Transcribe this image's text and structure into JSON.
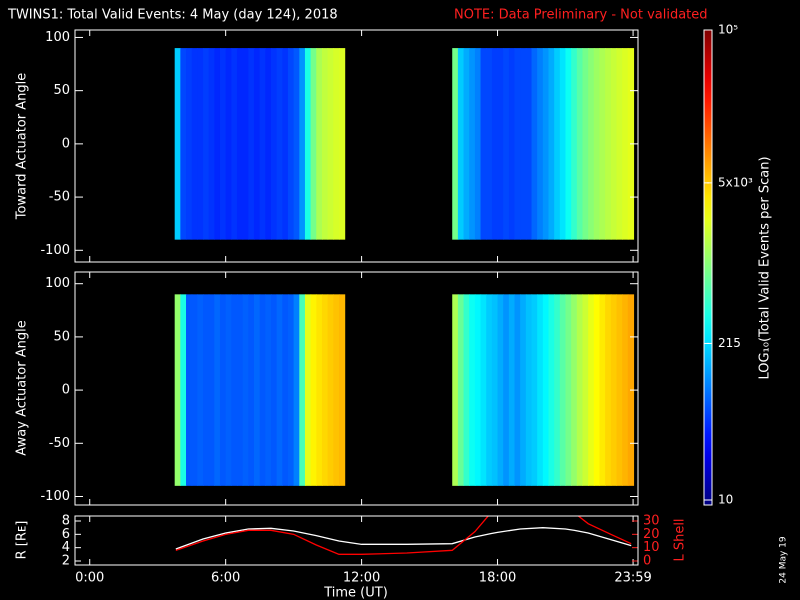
{
  "chart_data": [
    {
      "type": "heatmap",
      "title": "TWINS1: Total Valid Events:  4 May (day 124), 2018",
      "note": "NOTE: Data Preliminary - Not validated",
      "ylabel": "Toward Actuator Angle",
      "x": [
        3.875,
        4.125,
        4.375,
        4.625,
        4.875,
        5.125,
        5.375,
        5.625,
        5.875,
        6.125,
        6.375,
        6.625,
        6.875,
        7.125,
        7.375,
        7.625,
        7.875,
        8.125,
        8.375,
        8.625,
        8.875,
        9.125,
        9.375,
        9.625,
        9.875,
        10.125,
        10.375,
        10.625,
        10.875,
        11.125,
        16.125,
        16.375,
        16.625,
        16.875,
        17.125,
        17.375,
        17.625,
        17.875,
        18.125,
        18.375,
        18.625,
        18.875,
        19.125,
        19.375,
        19.625,
        19.875,
        20.125,
        20.375,
        20.625,
        20.875,
        21.125,
        21.375,
        21.625,
        21.875,
        22.125,
        22.375,
        22.625,
        22.875,
        23.125,
        23.375,
        23.625,
        23.875
      ],
      "angle_range": [
        -90,
        90
      ],
      "values": [
        200,
        60,
        55,
        50,
        50,
        55,
        50,
        45,
        50,
        45,
        50,
        45,
        45,
        50,
        45,
        50,
        45,
        50,
        55,
        50,
        60,
        70,
        120,
        400,
        900,
        1500,
        1800,
        2000,
        2200,
        2300,
        900,
        200,
        150,
        120,
        100,
        60,
        60,
        55,
        55,
        60,
        55,
        60,
        60,
        60,
        80,
        100,
        120,
        150,
        200,
        250,
        350,
        500,
        700,
        900,
        1100,
        1300,
        1500,
        1700,
        1900,
        2100,
        2300,
        2500
      ],
      "ylim": [
        -111,
        107
      ],
      "yticks": [
        -100,
        -50,
        0,
        50,
        100
      ],
      "clim": [
        10,
        100000
      ],
      "cticks": [
        10,
        215,
        {
          "value": 5000,
          "label": "5x10³"
        },
        {
          "value": 100000,
          "label": "10⁵"
        }
      ],
      "clabel": "LOG₁₀(Total Valid Events per Scan)"
    },
    {
      "type": "heatmap",
      "ylabel": "Away Actuator Angle",
      "angle_range": [
        -90,
        90
      ],
      "values": [
        1200,
        400,
        70,
        70,
        75,
        70,
        70,
        80,
        70,
        75,
        70,
        70,
        75,
        70,
        80,
        70,
        75,
        70,
        80,
        70,
        75,
        100,
        600,
        2500,
        3500,
        4000,
        4500,
        5000,
        5500,
        6000,
        1500,
        800,
        500,
        350,
        300,
        250,
        200,
        180,
        150,
        120,
        150,
        120,
        150,
        180,
        200,
        250,
        300,
        400,
        500,
        700,
        900,
        1200,
        1600,
        2000,
        2600,
        3200,
        3800,
        4500,
        5000,
        5600,
        6200,
        7000
      ],
      "ylim": [
        -108,
        111
      ],
      "yticks": [
        -100,
        -50,
        0,
        50,
        100
      ]
    },
    {
      "type": "line",
      "x": [
        3.8,
        5,
        6,
        7,
        8,
        9,
        10,
        11,
        12,
        14,
        16,
        17,
        17.7,
        18,
        19,
        20,
        21,
        21.4,
        22,
        23,
        23.9
      ],
      "series": [
        {
          "color": "#ffffff",
          "values": [
            3.8,
            5.3,
            6.2,
            6.8,
            6.9,
            6.5,
            5.8,
            5.0,
            4.5,
            4.5,
            4.6,
            5.6,
            6.1,
            6.3,
            6.8,
            7.0,
            6.8,
            6.6,
            6.2,
            5.2,
            4.3
          ]
        },
        {
          "color": "#ff0000",
          "axis": "y2",
          "values": [
            8,
            15,
            20,
            23,
            23,
            20,
            12,
            5,
            5,
            6,
            8,
            22,
            36,
            null,
            null,
            null,
            null,
            36,
            28,
            20,
            13
          ]
        }
      ],
      "xlim": [
        -0.65,
        24.2
      ],
      "xticks": [
        {
          "value": 0,
          "label": "0:00"
        },
        {
          "value": 6,
          "label": "6:00"
        },
        {
          "value": 12,
          "label": "12:00"
        },
        {
          "value": 18,
          "label": "18:00"
        },
        {
          "value": 23.983,
          "label": "23:59"
        }
      ],
      "xlabel": "Time (UT)",
      "ylabel": "R [Rᴇ]",
      "ylim": [
        1.4,
        8.75
      ],
      "yticks": [
        2,
        4,
        6,
        8
      ],
      "y2label": "L Shell",
      "y2lim": [
        -3,
        33.75
      ],
      "y2ticks": [
        0,
        10,
        20,
        30
      ]
    }
  ],
  "footer": "24 May 19"
}
